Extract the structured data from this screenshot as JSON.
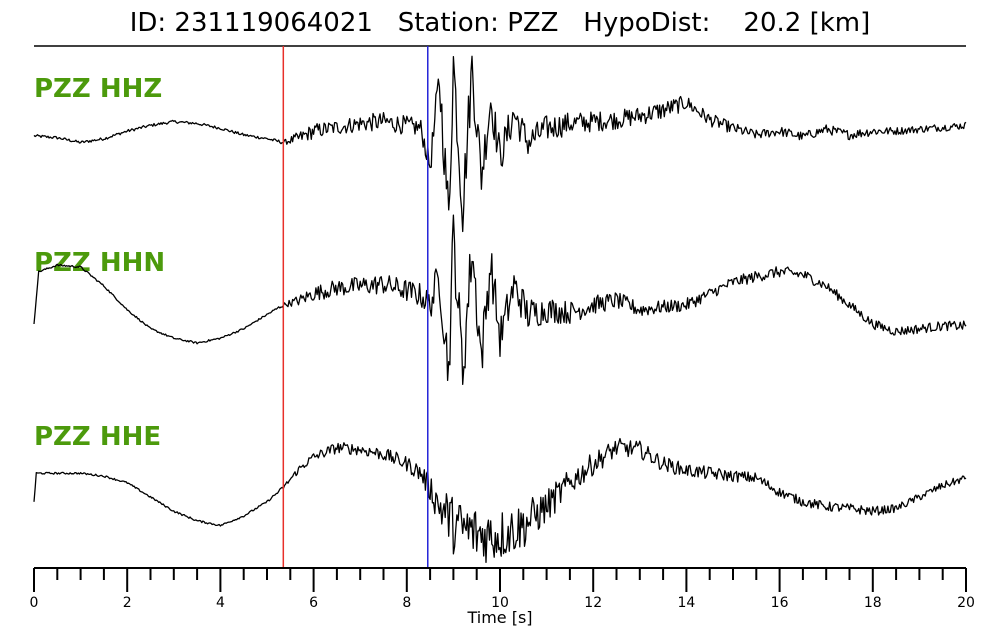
{
  "header": {
    "title": "ID: 231119064021   Station: PZZ   HypoDist:    20.2 [km]"
  },
  "chart_data": {
    "type": "line",
    "title": "ID: 231119064021   Station: PZZ   HypoDist:    20.2 [km]",
    "xlabel": "Time [s]",
    "ylabel": "",
    "xlim": [
      0,
      20
    ],
    "x_ticks": [
      0,
      2,
      4,
      6,
      8,
      10,
      12,
      14,
      16,
      18,
      20
    ],
    "x_tick_labels": [
      "0",
      "2",
      "4",
      "6",
      "8",
      "10",
      "12",
      "14",
      "16",
      "18",
      "20"
    ],
    "minor_tick_step": 0.5,
    "grid": false,
    "markers": [
      {
        "phase": "P",
        "time": 5.35,
        "color": "#e8302a"
      },
      {
        "phase": "S",
        "time": 8.45,
        "color": "#2424d8"
      }
    ],
    "label_color": "#4c9a0c",
    "series": [
      {
        "name": "PZZ HHZ",
        "x": [
          0.0,
          0.5,
          1.0,
          1.5,
          2.0,
          2.5,
          3.0,
          3.5,
          4.0,
          4.5,
          5.0,
          5.35,
          5.7,
          6.0,
          6.5,
          7.0,
          7.5,
          8.0,
          8.3,
          8.5,
          8.7,
          8.9,
          9.0,
          9.2,
          9.4,
          9.6,
          9.8,
          10.0,
          10.3,
          10.6,
          11.0,
          11.5,
          12.0,
          12.5,
          13.0,
          13.5,
          14.0,
          14.5,
          15.0,
          15.5,
          16.0,
          16.5,
          17.0,
          17.5,
          18.0,
          18.5,
          19.0,
          19.5,
          20.0
        ],
        "y": [
          -0.03,
          -0.05,
          -0.1,
          -0.06,
          0.02,
          0.08,
          0.12,
          0.1,
          0.05,
          -0.02,
          -0.06,
          -0.1,
          -0.05,
          0.02,
          0.06,
          0.1,
          0.12,
          0.08,
          0.05,
          -0.35,
          0.55,
          -0.9,
          0.75,
          -0.8,
          0.7,
          -0.45,
          0.35,
          -0.25,
          0.2,
          -0.1,
          0.05,
          0.1,
          0.12,
          0.14,
          0.18,
          0.24,
          0.32,
          0.14,
          0.05,
          -0.02,
          0.02,
          -0.04,
          0.04,
          -0.02,
          0.02,
          0.02,
          0.04,
          0.06,
          0.08
        ],
        "noise_amplitude": [
          0.015,
          0.015,
          0.015,
          0.015,
          0.015,
          0.015,
          0.015,
          0.015,
          0.015,
          0.015,
          0.015,
          0.02,
          0.07,
          0.08,
          0.08,
          0.09,
          0.1,
          0.1,
          0.1,
          0.12,
          0.25,
          0.3,
          0.3,
          0.3,
          0.3,
          0.25,
          0.22,
          0.2,
          0.18,
          0.16,
          0.14,
          0.12,
          0.11,
          0.1,
          0.1,
          0.1,
          0.08,
          0.07,
          0.06,
          0.05,
          0.05,
          0.05,
          0.05,
          0.05,
          0.05,
          0.04,
          0.04,
          0.04,
          0.04
        ]
      },
      {
        "name": "PZZ HHN",
        "x": [
          0.0,
          0.1,
          0.5,
          1.0,
          1.5,
          2.0,
          2.5,
          3.0,
          3.5,
          4.0,
          4.5,
          5.0,
          5.35,
          5.7,
          6.0,
          6.5,
          7.0,
          7.5,
          8.0,
          8.3,
          8.5,
          8.7,
          8.9,
          9.0,
          9.2,
          9.4,
          9.6,
          9.8,
          10.0,
          10.3,
          10.6,
          11.0,
          11.5,
          12.0,
          12.5,
          13.0,
          13.5,
          14.0,
          14.5,
          15.0,
          15.5,
          16.0,
          16.5,
          17.0,
          17.5,
          18.0,
          18.5,
          19.0,
          19.5,
          20.0
        ],
        "y": [
          -0.2,
          0.35,
          0.42,
          0.4,
          0.2,
          -0.05,
          -0.25,
          -0.35,
          -0.4,
          -0.35,
          -0.25,
          -0.1,
          0.0,
          0.05,
          0.12,
          0.18,
          0.2,
          0.22,
          0.15,
          0.1,
          0.0,
          0.3,
          -0.7,
          0.75,
          -0.7,
          0.6,
          -0.55,
          0.45,
          -0.35,
          0.2,
          -0.1,
          -0.05,
          -0.08,
          0.0,
          0.05,
          -0.05,
          -0.02,
          0.0,
          0.12,
          0.24,
          0.3,
          0.35,
          0.32,
          0.2,
          0.0,
          -0.2,
          -0.28,
          -0.25,
          -0.22,
          -0.22
        ],
        "noise_amplitude": [
          0.0,
          0.01,
          0.01,
          0.01,
          0.01,
          0.01,
          0.01,
          0.01,
          0.01,
          0.01,
          0.01,
          0.01,
          0.02,
          0.06,
          0.08,
          0.09,
          0.1,
          0.11,
          0.12,
          0.13,
          0.15,
          0.25,
          0.3,
          0.32,
          0.32,
          0.3,
          0.28,
          0.25,
          0.22,
          0.2,
          0.18,
          0.14,
          0.12,
          0.1,
          0.09,
          0.08,
          0.07,
          0.07,
          0.06,
          0.06,
          0.06,
          0.06,
          0.06,
          0.05,
          0.05,
          0.05,
          0.05,
          0.05,
          0.05,
          0.05
        ]
      },
      {
        "name": "PZZ HHE",
        "x": [
          0.0,
          0.05,
          0.5,
          1.0,
          1.5,
          2.0,
          2.5,
          3.0,
          3.5,
          4.0,
          4.5,
          5.0,
          5.35,
          5.7,
          6.0,
          6.5,
          7.0,
          7.5,
          8.0,
          8.3,
          8.5,
          8.7,
          8.9,
          9.0,
          9.3,
          9.6,
          10.0,
          10.5,
          11.0,
          11.5,
          12.0,
          12.5,
          13.0,
          13.5,
          14.0,
          14.5,
          15.0,
          15.5,
          16.0,
          16.5,
          17.0,
          17.5,
          18.0,
          18.5,
          19.0,
          19.5,
          20.0
        ],
        "y": [
          -0.25,
          0.05,
          0.05,
          0.05,
          0.02,
          -0.05,
          -0.2,
          -0.35,
          -0.45,
          -0.5,
          -0.4,
          -0.25,
          -0.1,
          0.1,
          0.22,
          0.32,
          0.3,
          0.25,
          0.15,
          0.05,
          -0.1,
          -0.3,
          -0.4,
          -0.5,
          -0.55,
          -0.6,
          -0.6,
          -0.5,
          -0.3,
          -0.05,
          0.15,
          0.32,
          0.3,
          0.15,
          0.08,
          0.05,
          0.02,
          0.0,
          -0.15,
          -0.25,
          -0.3,
          -0.32,
          -0.35,
          -0.32,
          -0.2,
          -0.08,
          0.0
        ],
        "noise_amplitude": [
          0.0,
          0.01,
          0.01,
          0.01,
          0.01,
          0.01,
          0.01,
          0.01,
          0.01,
          0.01,
          0.01,
          0.01,
          0.02,
          0.04,
          0.05,
          0.06,
          0.06,
          0.07,
          0.08,
          0.1,
          0.15,
          0.22,
          0.28,
          0.3,
          0.3,
          0.3,
          0.28,
          0.25,
          0.18,
          0.14,
          0.12,
          0.1,
          0.09,
          0.08,
          0.07,
          0.07,
          0.06,
          0.06,
          0.05,
          0.05,
          0.05,
          0.05,
          0.05,
          0.04,
          0.04,
          0.04,
          0.04
        ]
      }
    ]
  }
}
